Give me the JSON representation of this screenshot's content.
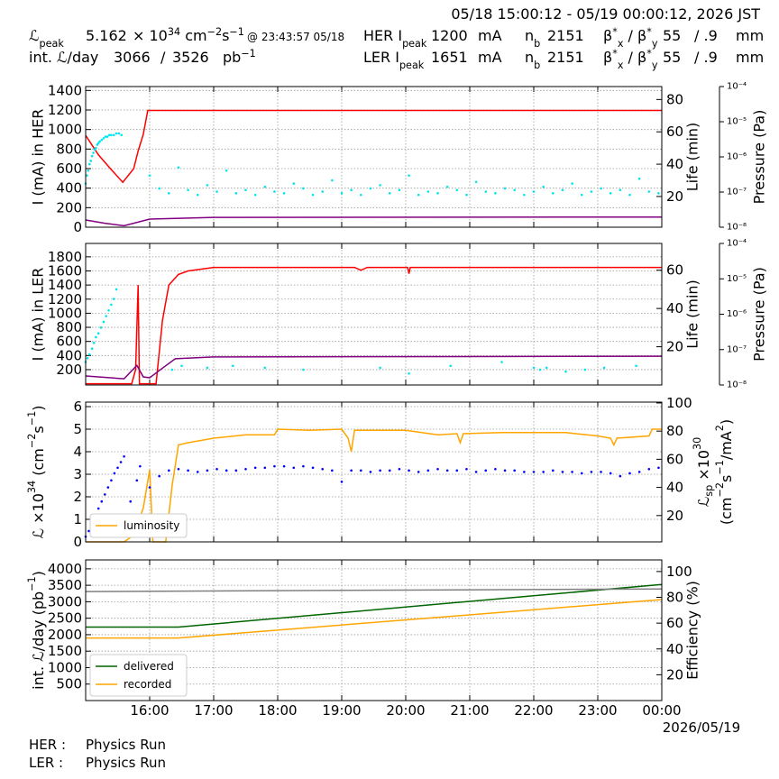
{
  "header": {
    "date_range": "05/18 15:00:12 - 05/19 00:00:12, 2026 JST",
    "rows": [
      [
        [
          "ℒ",
          {
            "sub": "peak"
          }
        ],
        "5.162",
        [
          "× 10",
          {
            "sup": "34"
          },
          " cm",
          {
            "sup": "−2"
          },
          "s",
          {
            "sup": "−1"
          }
        ],
        "@ 23:43:57 05/18",
        [
          "HER I",
          {
            "sub": "peak"
          }
        ],
        "1200",
        "mA",
        [
          "n",
          {
            "sub": "b"
          }
        ],
        "2151",
        [
          "β",
          {
            "sup": "*"
          },
          {
            "sub": "x"
          },
          " / β",
          {
            "sup": "*"
          },
          {
            "sub": "y"
          }
        ],
        "55",
        "/ .9",
        "mm"
      ],
      [
        "int. ℒ/day",
        "3066",
        "/",
        "3526",
        [
          "pb",
          {
            "sup": "−1"
          }
        ],
        [
          "LER I",
          {
            "sub": "peak"
          }
        ],
        "1651",
        "mA",
        [
          "n",
          {
            "sub": "b"
          }
        ],
        "2151",
        [
          "β",
          {
            "sup": "*"
          },
          {
            "sub": "x"
          },
          " / β",
          {
            "sup": "*"
          },
          {
            "sub": "y"
          }
        ],
        "55",
        "/ .9",
        "mm"
      ]
    ]
  },
  "chart_data": [
    {
      "type": "line",
      "ylabel": "I (mA) in HER",
      "y2label": [
        "Life (min)"
      ],
      "y3label": "Pressure (Pa)",
      "ylim": [
        0,
        1440
      ],
      "yticks": [
        0,
        200,
        400,
        600,
        800,
        1000,
        1200,
        1400
      ],
      "y2lim": [
        1,
        88
      ],
      "y2ticks": [
        20,
        40,
        60,
        80
      ],
      "y3lim": [
        1e-08,
        0.0001
      ],
      "y3scale": "log",
      "y3ticks": [
        {
          "value": 1e-08,
          "label": "10⁻⁸"
        },
        {
          "value": 1e-07,
          "label": "10⁻⁷"
        },
        {
          "value": 1e-06,
          "label": "10⁻⁶"
        },
        {
          "value": 1e-05,
          "label": "10⁻⁵"
        },
        {
          "value": 0.0001,
          "label": "10⁻⁴"
        }
      ],
      "grid": true,
      "series": [
        {
          "color": "#ff0000",
          "x": [
            15.0,
            15.2,
            15.4,
            15.58,
            15.75,
            15.82,
            15.9,
            15.97,
            16.5,
            24.0
          ],
          "values": [
            940,
            740,
            590,
            460,
            600,
            780,
            950,
            1195,
            1195,
            1195
          ]
        },
        {
          "color": "#00e5ee",
          "type": "scatter",
          "axis": "y2",
          "x": [
            15.0,
            15.02,
            15.04,
            15.06,
            15.08,
            15.1,
            15.12,
            15.14,
            15.16,
            15.18,
            15.2,
            15.22,
            15.25,
            15.28,
            15.31,
            15.34,
            15.37,
            15.4,
            15.44,
            15.48,
            15.52,
            15.56,
            16.0,
            16.15,
            16.3,
            16.45,
            16.6,
            16.75,
            16.9,
            17.05,
            17.2,
            17.35,
            17.5,
            17.65,
            17.8,
            17.95,
            18.1,
            18.25,
            18.4,
            18.55,
            18.7,
            18.85,
            19.0,
            19.15,
            19.3,
            19.45,
            19.6,
            19.75,
            19.9,
            20.05,
            20.2,
            20.35,
            20.5,
            20.65,
            20.8,
            20.95,
            21.1,
            21.25,
            21.4,
            21.55,
            21.7,
            21.85,
            22.0,
            22.15,
            22.3,
            22.45,
            22.6,
            22.75,
            22.9,
            23.05,
            23.2,
            23.35,
            23.5,
            23.65,
            23.8,
            23.95
          ],
          "values": [
            28,
            33,
            36,
            40,
            42,
            45,
            47,
            49,
            50,
            52,
            53,
            54,
            55,
            56,
            57,
            57,
            58,
            58,
            58,
            59,
            59,
            58,
            33,
            25,
            22,
            38,
            24,
            21,
            27,
            23,
            36,
            22,
            24,
            21,
            26,
            23,
            22,
            28,
            25,
            21,
            23,
            30,
            22,
            24,
            21,
            25,
            27,
            22,
            24,
            33,
            21,
            23,
            22,
            26,
            24,
            21,
            29,
            23,
            22,
            25,
            24,
            21,
            23,
            26,
            22,
            24,
            28,
            21,
            23,
            25,
            22,
            24,
            21,
            31,
            23,
            22
          ]
        },
        {
          "color": "#800080",
          "axis": "y3",
          "x": [
            15.0,
            15.3,
            15.6,
            16.0,
            17.0,
            24.0
          ],
          "values": [
            1.6e-08,
            1.3e-08,
            1.1e-08,
            1.7e-08,
            1.9e-08,
            1.95e-08
          ]
        }
      ]
    },
    {
      "type": "line",
      "ylabel": "I (mA) in LER",
      "y2label": [
        "Life (min)"
      ],
      "y3label": "Pressure (Pa)",
      "ylim": [
        -18,
        1990
      ],
      "yticks": [
        200,
        400,
        600,
        800,
        1000,
        1200,
        1400,
        1600,
        1800
      ],
      "y2lim": [
        0,
        74
      ],
      "y2ticks": [
        20,
        40,
        60
      ],
      "y3lim": [
        1e-08,
        0.0001
      ],
      "y3scale": "log",
      "y3ticks": [
        {
          "value": 1e-08,
          "label": "10⁻⁸"
        },
        {
          "value": 1e-07,
          "label": "10⁻⁷"
        },
        {
          "value": 1e-06,
          "label": "10⁻⁶"
        },
        {
          "value": 1e-05,
          "label": "10⁻⁵"
        },
        {
          "value": 0.0001,
          "label": "10⁻⁴"
        }
      ],
      "grid": true,
      "series": [
        {
          "color": "#ff0000",
          "x": [
            15.0,
            15.6,
            15.72,
            15.78,
            15.82,
            15.84,
            15.86,
            16.1,
            16.2,
            16.3,
            16.45,
            16.6,
            17.0,
            19.2,
            19.3,
            19.4,
            20.03,
            20.05,
            20.07,
            24.0
          ],
          "values": [
            0,
            0,
            0,
            200,
            1400,
            0,
            0,
            0,
            900,
            1400,
            1550,
            1600,
            1650,
            1650,
            1610,
            1650,
            1650,
            1560,
            1650,
            1650
          ]
        },
        {
          "color": "#00e5ee",
          "type": "scatter",
          "axis": "y2",
          "x": [
            15.0,
            15.03,
            15.06,
            15.1,
            15.13,
            15.16,
            15.2,
            15.24,
            15.28,
            15.32,
            15.36,
            15.4,
            15.44,
            15.48,
            16.35,
            16.5,
            16.9,
            17.3,
            17.8,
            18.4,
            19.6,
            20.05,
            20.7,
            21.5,
            22.0,
            22.1,
            22.2,
            22.5,
            22.8,
            23.1,
            23.6
          ],
          "values": [
            12,
            14,
            16,
            19,
            22,
            25,
            27,
            30,
            33,
            36,
            39,
            42,
            45,
            50,
            8,
            10,
            9,
            10,
            9,
            8,
            9,
            6,
            10,
            12,
            9,
            8,
            9,
            7,
            8,
            9,
            10
          ]
        },
        {
          "color": "#800080",
          "axis": "y3",
          "x": [
            15.0,
            15.6,
            15.8,
            15.9,
            16.0,
            16.2,
            16.4,
            17.0,
            24.0
          ],
          "values": [
            1.8e-08,
            1.5e-08,
            3.6e-08,
            1.7e-08,
            1.6e-08,
            3e-08,
            5.5e-08,
            6.2e-08,
            6.5e-08
          ]
        }
      ]
    },
    {
      "type": "line",
      "ylabel": [
        "ℒ ×10",
        {
          "sup": "34"
        },
        " (cm",
        {
          "sup": "−2"
        },
        "s",
        {
          "sup": "−1"
        },
        ")"
      ],
      "y2label": [
        [
          "ℒ",
          {
            "sub": "sp"
          },
          " ×10",
          {
            "sup": "30"
          }
        ],
        [
          "(cm",
          {
            "sup": "−2"
          },
          "s",
          {
            "sup": "−1"
          },
          "/mA",
          {
            "sup": "2"
          },
          ")"
        ]
      ],
      "ylim": [
        0,
        6.2
      ],
      "yticks": [
        0,
        1,
        2,
        3,
        4,
        5,
        6
      ],
      "y2lim": [
        1.3,
        100.6
      ],
      "y2ticks": [
        20,
        40,
        60,
        80,
        100
      ],
      "grid": true,
      "legend": "lower left",
      "series": [
        {
          "name": "luminosity",
          "color": "#ffa500",
          "x": [
            15.0,
            15.6,
            15.75,
            15.9,
            16.0,
            16.05,
            16.1,
            16.25,
            16.35,
            16.45,
            16.6,
            17.0,
            17.5,
            17.95,
            18.0,
            18.5,
            19.0,
            19.1,
            19.15,
            19.2,
            19.5,
            20.0,
            20.5,
            20.8,
            20.85,
            20.9,
            21.5,
            22.0,
            22.5,
            23.0,
            23.2,
            23.25,
            23.3,
            23.8,
            23.85,
            24.0
          ],
          "values": [
            0,
            0,
            0.3,
            1.5,
            3.2,
            0,
            0,
            0,
            2.5,
            4.3,
            4.4,
            4.6,
            4.75,
            4.75,
            5.0,
            4.95,
            5.0,
            4.6,
            4.0,
            4.95,
            4.95,
            4.95,
            4.75,
            4.8,
            4.4,
            4.8,
            4.85,
            4.85,
            4.85,
            4.7,
            4.6,
            4.3,
            4.6,
            4.7,
            5.0,
            5.0
          ]
        },
        {
          "color": "#0000ff",
          "type": "scatter",
          "axis": "y2",
          "x": [
            15.0,
            15.05,
            15.1,
            15.15,
            15.2,
            15.25,
            15.3,
            15.35,
            15.4,
            15.45,
            15.5,
            15.55,
            15.6,
            15.7,
            15.8,
            15.85,
            16.0,
            16.15,
            16.3,
            16.45,
            16.6,
            16.75,
            16.9,
            17.05,
            17.2,
            17.35,
            17.5,
            17.65,
            17.8,
            17.95,
            18.1,
            18.25,
            18.4,
            18.55,
            18.7,
            18.85,
            19.0,
            19.15,
            19.3,
            19.45,
            19.6,
            19.75,
            19.9,
            20.05,
            20.2,
            20.35,
            20.5,
            20.65,
            20.8,
            20.95,
            21.1,
            21.25,
            21.4,
            21.55,
            21.7,
            21.85,
            22.0,
            22.15,
            22.3,
            22.45,
            22.6,
            22.75,
            22.9,
            23.05,
            23.2,
            23.35,
            23.5,
            23.65,
            23.8,
            23.95
          ],
          "values": [
            5,
            9,
            14,
            20,
            25,
            30,
            35,
            40,
            45,
            50,
            54,
            58,
            62,
            30,
            45,
            55,
            40,
            48,
            52,
            53,
            52,
            51,
            52,
            53,
            52,
            52,
            53,
            54,
            54,
            55,
            55,
            54,
            55,
            54,
            53,
            52,
            44,
            52,
            52,
            51,
            52,
            52,
            53,
            52,
            51,
            52,
            53,
            52,
            52,
            53,
            51,
            52,
            53,
            52,
            52,
            51,
            51,
            51,
            52,
            51,
            51,
            50,
            51,
            51,
            50,
            48,
            50,
            51,
            53,
            54
          ]
        }
      ]
    },
    {
      "type": "line",
      "ylabel": [
        "int. ℒ/day (pb",
        {
          "sup": "−1"
        },
        ")"
      ],
      "y2label": [
        "Efficiency (%)"
      ],
      "ylim": [
        0,
        4270
      ],
      "yticks": [
        500,
        1000,
        1500,
        2000,
        2500,
        3000,
        3500,
        4000
      ],
      "y2lim": [
        0,
        109
      ],
      "y2ticks": [
        20,
        40,
        60,
        80,
        100
      ],
      "xlim": [
        15,
        24
      ],
      "xticks": [
        {
          "value": 16,
          "label": "16:00"
        },
        {
          "value": 17,
          "label": "17:00"
        },
        {
          "value": 18,
          "label": "18:00"
        },
        {
          "value": 19,
          "label": "19:00"
        },
        {
          "value": 20,
          "label": "20:00"
        },
        {
          "value": 21,
          "label": "21:00"
        },
        {
          "value": 22,
          "label": "22:00"
        },
        {
          "value": 23,
          "label": "23:00"
        },
        {
          "value": 24,
          "label": "00:00"
        }
      ],
      "xdate": "2026/05/19",
      "grid": true,
      "legend": "lower left",
      "series": [
        {
          "name": "delivered",
          "color": "#006400",
          "x": [
            15,
            16.45,
            24
          ],
          "values": [
            2230,
            2230,
            3526
          ]
        },
        {
          "name": "recorded",
          "color": "#ffa500",
          "x": [
            15,
            16.45,
            24
          ],
          "values": [
            1900,
            1900,
            3066
          ]
        },
        {
          "color": "#808080",
          "axis": "y2",
          "x": [
            15,
            24
          ],
          "values": [
            84.5,
            86.5
          ]
        }
      ]
    }
  ],
  "footer": [
    [
      "HER :",
      "Physics Run"
    ],
    [
      "LER :",
      "Physics Run"
    ]
  ]
}
